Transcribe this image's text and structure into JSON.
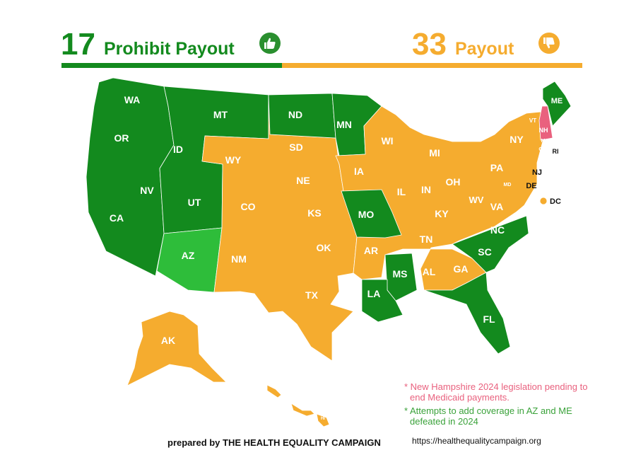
{
  "header": {
    "prohibit_count": "17",
    "prohibit_label": "Prohibit Payout",
    "payout_count": "33",
    "payout_label": "Payout",
    "prohibit_icon": "thumbs-up-icon",
    "payout_icon": "thumbs-down-icon"
  },
  "colors": {
    "prohibit": "#138a1e",
    "prohibit_light": "#2ebd3a",
    "payout": "#f5ac2f",
    "pending": "#e9617e"
  },
  "states": [
    {
      "abbr": "WA",
      "status": "prohibit"
    },
    {
      "abbr": "OR",
      "status": "prohibit"
    },
    {
      "abbr": "CA",
      "status": "prohibit"
    },
    {
      "abbr": "NV",
      "status": "prohibit"
    },
    {
      "abbr": "ID",
      "status": "prohibit"
    },
    {
      "abbr": "MT",
      "status": "prohibit"
    },
    {
      "abbr": "UT",
      "status": "prohibit"
    },
    {
      "abbr": "AZ",
      "status": "prohibit_attempt"
    },
    {
      "abbr": "ND",
      "status": "prohibit"
    },
    {
      "abbr": "MN",
      "status": "prohibit"
    },
    {
      "abbr": "MO",
      "status": "prohibit"
    },
    {
      "abbr": "LA",
      "status": "prohibit"
    },
    {
      "abbr": "MS",
      "status": "prohibit"
    },
    {
      "abbr": "SC",
      "status": "prohibit"
    },
    {
      "abbr": "NC",
      "status": "prohibit"
    },
    {
      "abbr": "FL",
      "status": "prohibit"
    },
    {
      "abbr": "ME",
      "status": "prohibit"
    },
    {
      "abbr": "WY",
      "status": "payout"
    },
    {
      "abbr": "SD",
      "status": "payout"
    },
    {
      "abbr": "NE",
      "status": "payout"
    },
    {
      "abbr": "CO",
      "status": "payout"
    },
    {
      "abbr": "KS",
      "status": "payout"
    },
    {
      "abbr": "NM",
      "status": "payout"
    },
    {
      "abbr": "OK",
      "status": "payout"
    },
    {
      "abbr": "TX",
      "status": "payout"
    },
    {
      "abbr": "IA",
      "status": "payout"
    },
    {
      "abbr": "AR",
      "status": "payout"
    },
    {
      "abbr": "WI",
      "status": "payout"
    },
    {
      "abbr": "IL",
      "status": "payout"
    },
    {
      "abbr": "MI",
      "status": "payout"
    },
    {
      "abbr": "IN",
      "status": "payout"
    },
    {
      "abbr": "OH",
      "status": "payout"
    },
    {
      "abbr": "KY",
      "status": "payout"
    },
    {
      "abbr": "TN",
      "status": "payout"
    },
    {
      "abbr": "AL",
      "status": "payout"
    },
    {
      "abbr": "GA",
      "status": "payout"
    },
    {
      "abbr": "WV",
      "status": "payout"
    },
    {
      "abbr": "VA",
      "status": "payout"
    },
    {
      "abbr": "PA",
      "status": "payout"
    },
    {
      "abbr": "NY",
      "status": "payout"
    },
    {
      "abbr": "VT",
      "status": "payout"
    },
    {
      "abbr": "NH",
      "status": "pending"
    },
    {
      "abbr": "MA",
      "status": "payout"
    },
    {
      "abbr": "CT",
      "status": "payout"
    },
    {
      "abbr": "RI",
      "status": "payout"
    },
    {
      "abbr": "NJ",
      "status": "payout"
    },
    {
      "abbr": "DE",
      "status": "payout"
    },
    {
      "abbr": "MD",
      "status": "payout"
    },
    {
      "abbr": "DC",
      "status": "payout"
    },
    {
      "abbr": "AK",
      "status": "payout"
    },
    {
      "abbr": "HI",
      "status": "payout"
    }
  ],
  "notes": {
    "nh_line1": "* New Hampshire 2024 legislation pending to",
    "nh_line2": "end Medicaid payments.",
    "az_line1": "* Attempts to add coverage in AZ and ME",
    "az_line2": "defeated in 2024"
  },
  "footer": {
    "prepared_by": "prepared by THE HEALTH EQUALITY CAMPAIGN",
    "url": "https://healthequalitycampaign.org"
  }
}
